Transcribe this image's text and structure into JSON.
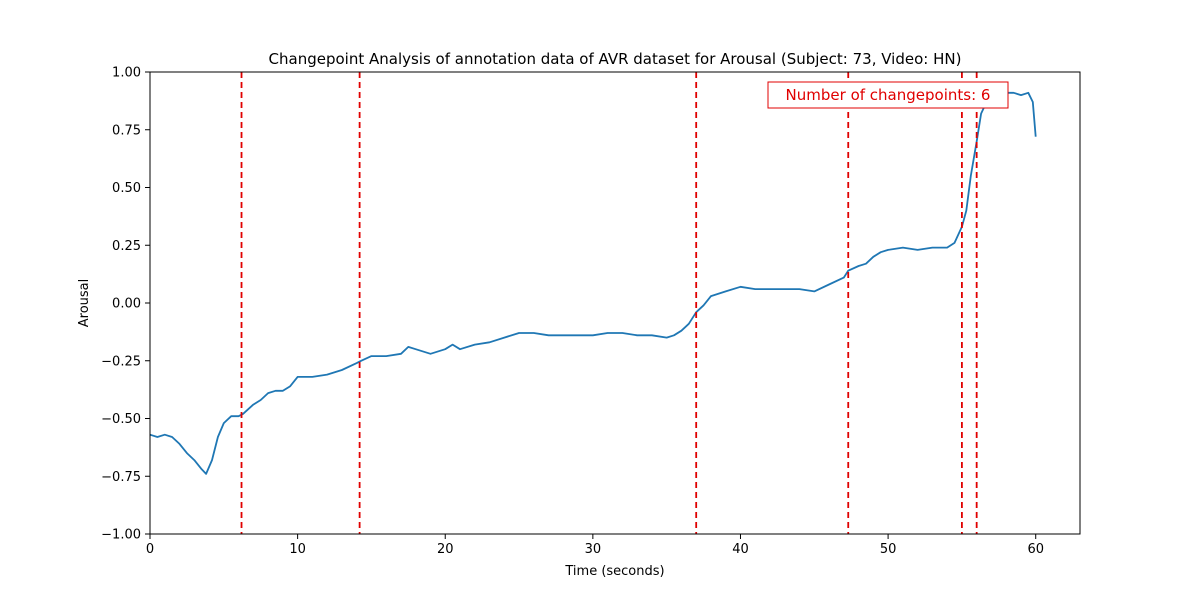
{
  "chart_data": {
    "type": "line",
    "title": "Changepoint Analysis of annotation data of AVR dataset for Arousal (Subject: 73, Video: HN)",
    "xlabel": "Time (seconds)",
    "ylabel": "Arousal",
    "xlim": [
      0,
      63
    ],
    "ylim": [
      -1.0,
      1.0
    ],
    "xticks": [
      0,
      10,
      20,
      30,
      40,
      50,
      60
    ],
    "xtick_labels": [
      "0",
      "10",
      "20",
      "30",
      "40",
      "50",
      "60"
    ],
    "yticks": [
      -1.0,
      -0.75,
      -0.5,
      -0.25,
      0.0,
      0.25,
      0.5,
      0.75,
      1.0
    ],
    "ytick_labels": [
      "−1.00",
      "−0.75",
      "−0.50",
      "−0.25",
      "0.00",
      "0.25",
      "0.50",
      "0.75",
      "1.00"
    ],
    "grid": false,
    "line_color": "#1f77b4",
    "changepoint_color": "#e00000",
    "series": [
      {
        "x": [
          0,
          0.5,
          1,
          1.5,
          2,
          2.5,
          3,
          3.5,
          3.8,
          4.2,
          4.6,
          5,
          5.5,
          6,
          6.3,
          7,
          7.5,
          8,
          8.5,
          9,
          9.5,
          10,
          11,
          12,
          13,
          14,
          14.3,
          15,
          16,
          17,
          17.5,
          18,
          19,
          20,
          20.5,
          21,
          22,
          23,
          24,
          25,
          26,
          27,
          28,
          29,
          30,
          31,
          32,
          33,
          34,
          35,
          35.5,
          36,
          36.5,
          37,
          37.5,
          38,
          39,
          40,
          41,
          42,
          43,
          44,
          45,
          46,
          47,
          47.3,
          48,
          48.5,
          49,
          49.5,
          50,
          51,
          52,
          53,
          54,
          54.5,
          55,
          55.3,
          55.6,
          56,
          56.3,
          56.6,
          57,
          57.5,
          58,
          58.5,
          59,
          59.5,
          59.8,
          60
        ],
        "y": [
          -0.57,
          -0.58,
          -0.57,
          -0.58,
          -0.61,
          -0.65,
          -0.68,
          -0.72,
          -0.74,
          -0.68,
          -0.58,
          -0.52,
          -0.49,
          -0.49,
          -0.48,
          -0.44,
          -0.42,
          -0.39,
          -0.38,
          -0.38,
          -0.36,
          -0.32,
          -0.32,
          -0.31,
          -0.29,
          -0.26,
          -0.25,
          -0.23,
          -0.23,
          -0.22,
          -0.19,
          -0.2,
          -0.22,
          -0.2,
          -0.18,
          -0.2,
          -0.18,
          -0.17,
          -0.15,
          -0.13,
          -0.13,
          -0.14,
          -0.14,
          -0.14,
          -0.14,
          -0.13,
          -0.13,
          -0.14,
          -0.14,
          -0.15,
          -0.14,
          -0.12,
          -0.09,
          -0.04,
          -0.01,
          0.03,
          0.05,
          0.07,
          0.06,
          0.06,
          0.06,
          0.06,
          0.05,
          0.08,
          0.11,
          0.14,
          0.16,
          0.17,
          0.2,
          0.22,
          0.23,
          0.24,
          0.23,
          0.24,
          0.24,
          0.26,
          0.33,
          0.4,
          0.55,
          0.7,
          0.82,
          0.86,
          0.9,
          0.91,
          0.91,
          0.91,
          0.9,
          0.91,
          0.87,
          0.72
        ]
      }
    ],
    "changepoints": [
      6.2,
      14.2,
      37.0,
      47.3,
      55.0,
      56.0
    ],
    "annotation": {
      "text": "Number of changepoints: 6",
      "position": "top-right",
      "color": "#e00000"
    }
  }
}
